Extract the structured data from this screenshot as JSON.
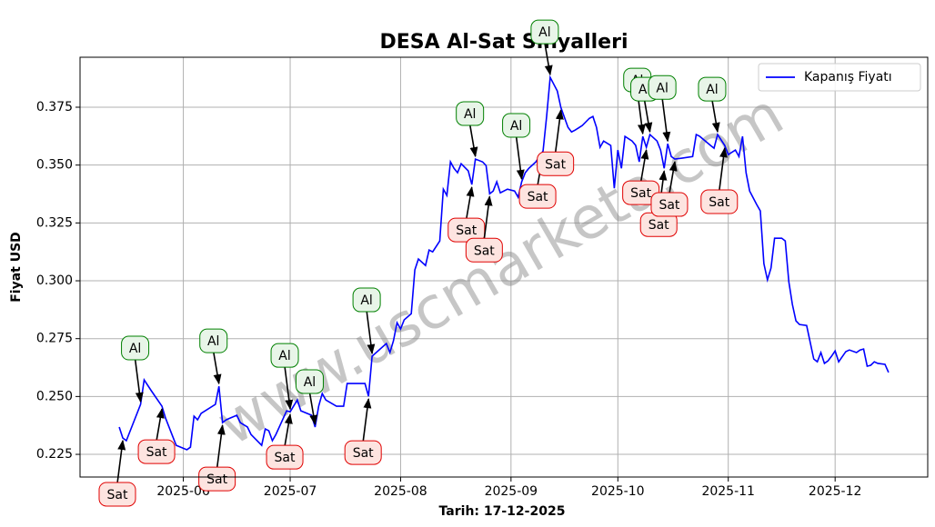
{
  "chart_data": {
    "type": "line",
    "title": "DESA Al-Sat Sinyalleri",
    "xlabel": "Tarih: 17-12-2025",
    "ylabel": "Fiyat USD",
    "watermark": "www.uscmarketa.com",
    "legend": "upper right",
    "grid": true,
    "xlim": [
      "2025-05-03",
      "2025-12-27"
    ],
    "ylim": [
      0.2152,
      0.3966
    ],
    "xticks": [
      {
        "value": "2025-06-01",
        "label": "2025-06"
      },
      {
        "value": "2025-07-01",
        "label": "2025-07"
      },
      {
        "value": "2025-08-01",
        "label": "2025-08"
      },
      {
        "value": "2025-09-01",
        "label": "2025-09"
      },
      {
        "value": "2025-10-01",
        "label": "2025-10"
      },
      {
        "value": "2025-11-01",
        "label": "2025-11"
      },
      {
        "value": "2025-12-01",
        "label": "2025-12"
      }
    ],
    "yticks": [
      0.225,
      {
        "value": 0.25,
        "label": "0.250"
      },
      0.275,
      {
        "value": 0.3,
        "label": "0.300"
      },
      0.325,
      {
        "value": 0.35,
        "label": "0.350"
      },
      0.375
    ],
    "x": [
      "2025-05-14",
      "2025-05-15",
      "2025-05-16",
      "2025-05-20",
      "2025-05-21",
      "2025-05-23",
      "2025-05-26",
      "2025-05-27",
      "2025-05-29",
      "2025-05-30",
      "2025-06-02",
      "2025-06-03",
      "2025-06-04",
      "2025-06-05",
      "2025-06-06",
      "2025-06-10",
      "2025-06-11",
      "2025-06-12",
      "2025-06-13",
      "2025-06-16",
      "2025-06-17",
      "2025-06-19",
      "2025-06-20",
      "2025-06-23",
      "2025-06-24",
      "2025-06-25",
      "2025-06-26",
      "2025-06-27",
      "2025-06-30",
      "2025-07-01",
      "2025-07-03",
      "2025-07-04",
      "2025-07-07",
      "2025-07-08",
      "2025-07-09",
      "2025-07-10",
      "2025-07-11",
      "2025-07-14",
      "2025-07-16",
      "2025-07-17",
      "2025-07-21",
      "2025-07-22",
      "2025-07-23",
      "2025-07-24",
      "2025-07-28",
      "2025-07-29",
      "2025-07-30",
      "2025-07-31",
      "2025-08-01",
      "2025-08-02",
      "2025-08-04",
      "2025-08-05",
      "2025-08-06",
      "2025-08-08",
      "2025-08-09",
      "2025-08-10",
      "2025-08-12",
      "2025-08-13",
      "2025-08-14",
      "2025-08-15",
      "2025-08-16",
      "2025-08-17",
      "2025-08-18",
      "2025-08-20",
      "2025-08-21",
      "2025-08-22",
      "2025-08-24",
      "2025-08-25",
      "2025-08-26",
      "2025-08-27",
      "2025-08-28",
      "2025-08-29",
      "2025-08-31",
      "2025-09-02",
      "2025-09-03",
      "2025-09-04",
      "2025-09-05",
      "2025-09-06",
      "2025-09-08",
      "2025-09-10",
      "2025-09-11",
      "2025-09-12",
      "2025-09-14",
      "2025-09-15",
      "2025-09-17",
      "2025-09-18",
      "2025-09-19",
      "2025-09-21",
      "2025-09-23",
      "2025-09-24",
      "2025-09-25",
      "2025-09-26",
      "2025-09-27",
      "2025-09-29",
      "2025-09-30",
      "2025-10-01",
      "2025-10-02",
      "2025-10-03",
      "2025-10-05",
      "2025-10-06",
      "2025-10-07",
      "2025-10-08",
      "2025-10-09",
      "2025-10-10",
      "2025-10-12",
      "2025-10-13",
      "2025-10-14",
      "2025-10-15",
      "2025-10-16",
      "2025-10-17",
      "2025-10-19",
      "2025-10-22",
      "2025-10-23",
      "2025-10-24",
      "2025-10-27",
      "2025-10-28",
      "2025-10-29",
      "2025-10-31",
      "2025-11-01",
      "2025-11-03",
      "2025-11-04",
      "2025-11-05",
      "2025-11-06",
      "2025-11-07",
      "2025-11-09",
      "2025-11-10",
      "2025-11-11",
      "2025-11-12",
      "2025-11-13",
      "2025-11-14",
      "2025-11-16",
      "2025-11-17",
      "2025-11-18",
      "2025-11-19",
      "2025-11-20",
      "2025-11-21",
      "2025-11-23",
      "2025-11-25",
      "2025-11-26",
      "2025-11-27",
      "2025-11-28",
      "2025-11-29",
      "2025-11-30",
      "2025-12-01",
      "2025-12-02",
      "2025-12-04",
      "2025-12-05",
      "2025-12-07",
      "2025-12-08",
      "2025-12-09",
      "2025-12-10",
      "2025-12-11",
      "2025-12-12",
      "2025-12-13",
      "2025-12-15",
      "2025-12-16"
    ],
    "series": [
      {
        "name": "Kapanış Fiyatı",
        "color": "#0000ff",
        "values": [
          0.2368,
          0.2321,
          0.2309,
          0.2466,
          0.2572,
          0.2525,
          0.2458,
          0.2407,
          0.2328,
          0.2289,
          0.227,
          0.2281,
          0.2415,
          0.2399,
          0.2427,
          0.2466,
          0.2544,
          0.2387,
          0.2399,
          0.2419,
          0.2387,
          0.2368,
          0.2336,
          0.2289,
          0.236,
          0.2352,
          0.2309,
          0.2336,
          0.2438,
          0.2434,
          0.2485,
          0.2438,
          0.2419,
          0.2368,
          0.2458,
          0.2513,
          0.2485,
          0.2458,
          0.2458,
          0.2556,
          0.2556,
          0.2556,
          0.2501,
          0.2674,
          0.2729,
          0.269,
          0.2741,
          0.2819,
          0.2792,
          0.2831,
          0.2858,
          0.3047,
          0.3094,
          0.3066,
          0.3133,
          0.3125,
          0.3172,
          0.3396,
          0.3369,
          0.3514,
          0.3486,
          0.3467,
          0.3506,
          0.3475,
          0.3416,
          0.3526,
          0.3514,
          0.3498,
          0.3376,
          0.3388,
          0.3428,
          0.338,
          0.3396,
          0.3388,
          0.3361,
          0.3428,
          0.3467,
          0.3486,
          0.3514,
          0.3561,
          0.371,
          0.3879,
          0.382,
          0.3749,
          0.3663,
          0.3643,
          0.3651,
          0.3671,
          0.3702,
          0.371,
          0.3663,
          0.3577,
          0.3604,
          0.3585,
          0.34,
          0.3565,
          0.3486,
          0.3624,
          0.3604,
          0.3585,
          0.3514,
          0.3624,
          0.3577,
          0.3632,
          0.3604,
          0.3565,
          0.3486,
          0.3592,
          0.3537,
          0.3526,
          0.353,
          0.3537,
          0.3632,
          0.3624,
          0.3585,
          0.3573,
          0.3632,
          0.3585,
          0.3545,
          0.3565,
          0.3537,
          0.3624,
          0.3467,
          0.3388,
          0.3329,
          0.3302,
          0.3074,
          0.3004,
          0.3055,
          0.3184,
          0.3184,
          0.3172,
          0.2996,
          0.2898,
          0.2827,
          0.2811,
          0.2807,
          0.2662,
          0.265,
          0.269,
          0.2643,
          0.2654,
          0.2674,
          0.2697,
          0.265,
          0.2694,
          0.2701,
          0.269,
          0.2701,
          0.2705,
          0.2631,
          0.2635,
          0.265,
          0.2643,
          0.2639,
          0.2604
        ]
      }
    ],
    "annotations": [
      {
        "text": "Al",
        "x": "2025-05-20",
        "y": 0.2466
      },
      {
        "text": "Al",
        "x": "2025-06-11",
        "y": 0.2544
      },
      {
        "text": "Al",
        "x": "2025-07-01",
        "y": 0.2434
      },
      {
        "text": "Al",
        "x": "2025-07-08",
        "y": 0.2368
      },
      {
        "text": "Al",
        "x": "2025-07-24",
        "y": 0.2674
      },
      {
        "text": "Al",
        "x": "2025-08-22",
        "y": 0.3526
      },
      {
        "text": "Al",
        "x": "2025-09-04",
        "y": 0.3428
      },
      {
        "text": "Al",
        "x": "2025-09-12",
        "y": 0.3879
      },
      {
        "text": "Al",
        "x": "2025-10-08",
        "y": 0.3624
      },
      {
        "text": "Al",
        "x": "2025-10-10",
        "y": 0.3632
      },
      {
        "text": "Al",
        "x": "2025-10-15",
        "y": 0.3592
      },
      {
        "text": "Al",
        "x": "2025-10-29",
        "y": 0.3632
      },
      {
        "text": "Sat",
        "x": "2025-05-15",
        "y": 0.2321
      },
      {
        "text": "Sat",
        "x": "2025-05-26",
        "y": 0.2458
      },
      {
        "text": "Sat",
        "x": "2025-06-12",
        "y": 0.2387
      },
      {
        "text": "Sat",
        "x": "2025-07-01",
        "y": 0.2434
      },
      {
        "text": "Sat",
        "x": "2025-07-23",
        "y": 0.2501
      },
      {
        "text": "Sat",
        "x": "2025-08-21",
        "y": 0.3416
      },
      {
        "text": "Sat",
        "x": "2025-08-26",
        "y": 0.3376
      },
      {
        "text": "Sat",
        "x": "2025-09-10",
        "y": 0.3561
      },
      {
        "text": "Sat",
        "x": "2025-09-15",
        "y": 0.3749
      },
      {
        "text": "Sat",
        "x": "2025-10-09",
        "y": 0.3577
      },
      {
        "text": "Sat",
        "x": "2025-10-14",
        "y": 0.3486
      },
      {
        "text": "Sat",
        "x": "2025-10-17",
        "y": 0.3526
      },
      {
        "text": "Sat",
        "x": "2025-10-31",
        "y": 0.3585
      }
    ]
  }
}
